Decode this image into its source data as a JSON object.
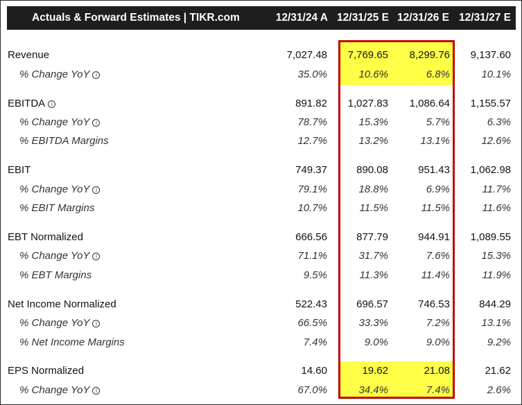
{
  "header": {
    "title": "Actuals & Forward Estimates | TIKR.com",
    "columns": [
      "12/31/24 A",
      "12/31/25 E",
      "12/31/26 E",
      "12/31/27 E"
    ]
  },
  "info_glyph": "i",
  "colors": {
    "highlight": "#ffff47",
    "box": "#c00000",
    "header_bg": "#1e1e1e"
  },
  "rows": [
    {
      "label": "Revenue",
      "values": [
        "7,027.48",
        "7,769.65",
        "8,299.76",
        "9,137.60"
      ]
    },
    {
      "label": "% Change YoY",
      "values": [
        "35.0%",
        "10.6%",
        "6.8%",
        "10.1%"
      ]
    },
    {
      "label": "EBITDA",
      "values": [
        "891.82",
        "1,027.83",
        "1,086.64",
        "1,155.57"
      ]
    },
    {
      "label": "% Change YoY",
      "values": [
        "78.7%",
        "15.3%",
        "5.7%",
        "6.3%"
      ]
    },
    {
      "label": "% EBITDA Margins",
      "values": [
        "12.7%",
        "13.2%",
        "13.1%",
        "12.6%"
      ]
    },
    {
      "label": "EBIT",
      "values": [
        "749.37",
        "890.08",
        "951.43",
        "1,062.98"
      ]
    },
    {
      "label": "% Change YoY",
      "values": [
        "79.1%",
        "18.8%",
        "6.9%",
        "11.7%"
      ]
    },
    {
      "label": "% EBIT Margins",
      "values": [
        "10.7%",
        "11.5%",
        "11.5%",
        "11.6%"
      ]
    },
    {
      "label": "EBT Normalized",
      "values": [
        "666.56",
        "877.79",
        "944.91",
        "1,089.55"
      ]
    },
    {
      "label": "% Change YoY",
      "values": [
        "71.1%",
        "31.7%",
        "7.6%",
        "15.3%"
      ]
    },
    {
      "label": "% EBT Margins",
      "values": [
        "9.5%",
        "11.3%",
        "11.4%",
        "11.9%"
      ]
    },
    {
      "label": "Net Income Normalized",
      "values": [
        "522.43",
        "696.57",
        "746.53",
        "844.29"
      ]
    },
    {
      "label": "% Change YoY",
      "values": [
        "66.5%",
        "33.3%",
        "7.2%",
        "13.1%"
      ]
    },
    {
      "label": "% Net Income Margins",
      "values": [
        "7.4%",
        "9.0%",
        "9.0%",
        "9.2%"
      ]
    },
    {
      "label": "EPS Normalized",
      "values": [
        "14.60",
        "19.62",
        "21.08",
        "21.62"
      ]
    },
    {
      "label": "% Change YoY",
      "values": [
        "67.0%",
        "34.4%",
        "7.4%",
        "2.6%"
      ]
    }
  ]
}
